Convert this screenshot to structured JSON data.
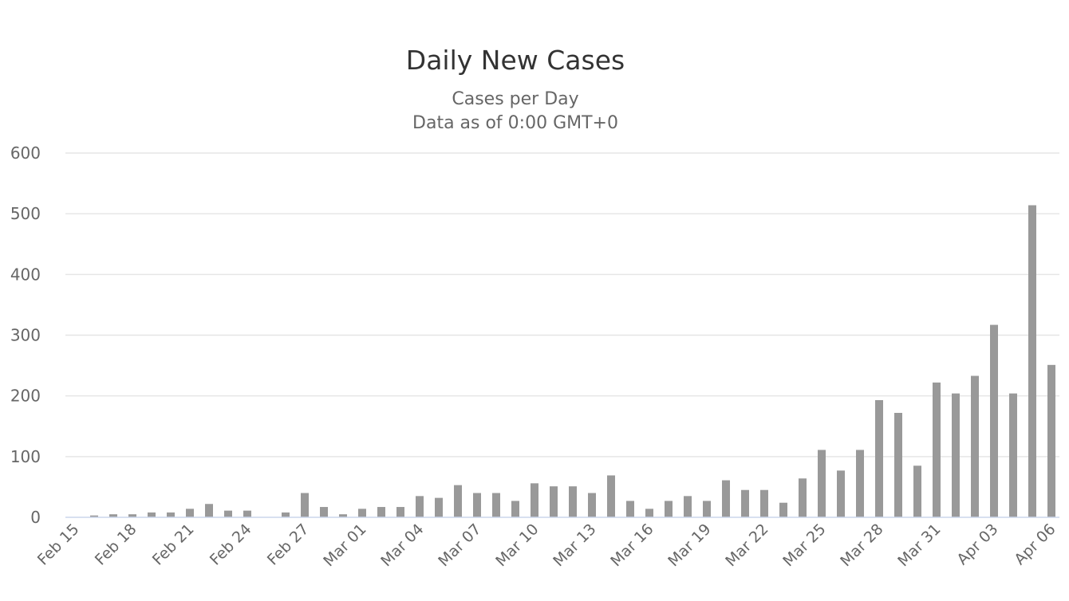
{
  "chart_data": {
    "type": "bar",
    "title": "Daily New Cases",
    "subtitle_lines": [
      "Cases per Day",
      "Data as of 0:00 GMT+0"
    ],
    "xlabel": "",
    "ylabel": "",
    "ylim": [
      0,
      600
    ],
    "y_ticks": [
      0,
      100,
      200,
      300,
      400,
      500,
      600
    ],
    "grid": true,
    "legend": "none",
    "bar_color": "#999999",
    "categories": [
      "Feb 15",
      "Feb 16",
      "Feb 17",
      "Feb 18",
      "Feb 19",
      "Feb 20",
      "Feb 21",
      "Feb 22",
      "Feb 23",
      "Feb 24",
      "Feb 25",
      "Feb 26",
      "Feb 27",
      "Feb 28",
      "Feb 29",
      "Mar 01",
      "Mar 02",
      "Mar 03",
      "Mar 04",
      "Mar 05",
      "Mar 06",
      "Mar 07",
      "Mar 08",
      "Mar 09",
      "Mar 10",
      "Mar 11",
      "Mar 12",
      "Mar 13",
      "Mar 14",
      "Mar 15",
      "Mar 16",
      "Mar 17",
      "Mar 18",
      "Mar 19",
      "Mar 20",
      "Mar 21",
      "Mar 22",
      "Mar 23",
      "Mar 24",
      "Mar 25",
      "Mar 26",
      "Mar 27",
      "Mar 28",
      "Mar 29",
      "Mar 30",
      "Mar 31",
      "Apr 01",
      "Apr 02",
      "Apr 03",
      "Apr 04",
      "Apr 05",
      "Apr 06"
    ],
    "x_tick_labels": [
      "Feb 15",
      "Feb 18",
      "Feb 21",
      "Feb 24",
      "Feb 27",
      "Mar 01",
      "Mar 04",
      "Mar 07",
      "Mar 10",
      "Mar 13",
      "Mar 16",
      "Mar 19",
      "Mar 22",
      "Mar 25",
      "Mar 28",
      "Mar 31",
      "Apr 03",
      "Apr 06"
    ],
    "values": [
      0,
      3,
      5,
      5,
      8,
      8,
      14,
      22,
      11,
      11,
      0,
      8,
      40,
      17,
      5,
      14,
      17,
      17,
      35,
      32,
      53,
      40,
      40,
      27,
      56,
      51,
      51,
      40,
      69,
      27,
      14,
      27,
      35,
      27,
      61,
      45,
      45,
      24,
      64,
      111,
      77,
      111,
      193,
      172,
      85,
      222,
      204,
      233,
      317,
      204,
      514,
      251
    ]
  }
}
